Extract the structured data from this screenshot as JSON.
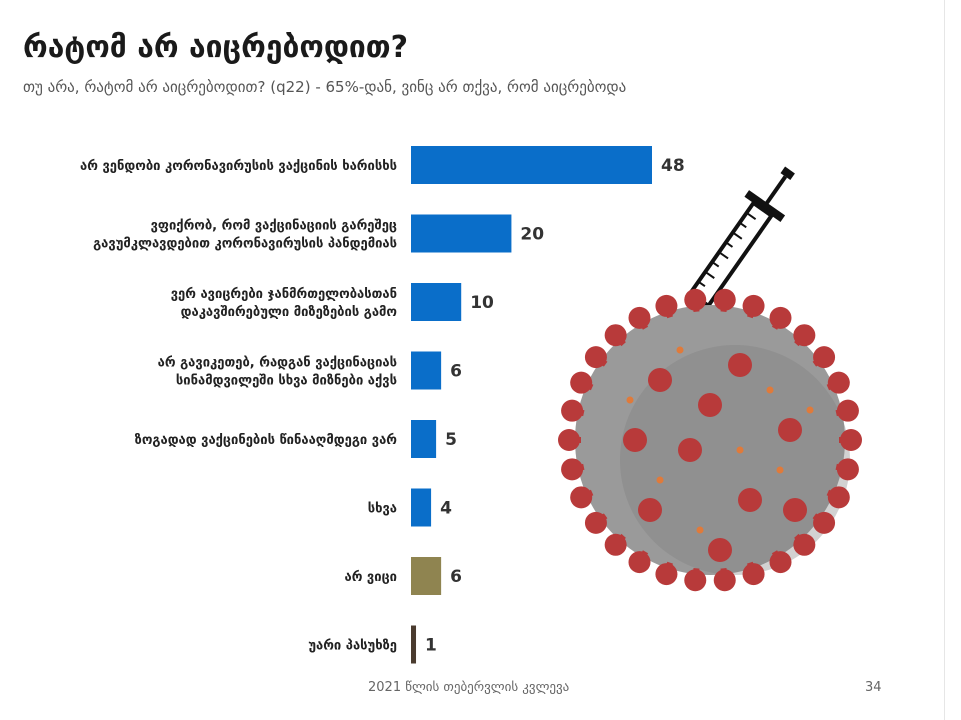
{
  "slide": {
    "title": "რატომ არ აიცრებოდით?",
    "subtitle": "თუ არა, რატომ არ აიცრებოდით? (q22) - 65%-დან, ვინც არ თქვა, რომ აიცრებოდა",
    "footer": "2021 წლის თებერვლის კვლევა",
    "page_number": "34"
  },
  "chart_data": {
    "type": "bar",
    "orientation": "horizontal",
    "categories": [
      [
        "არ ვენდობი კორონავირუსის ვაქცინის ხარისხს"
      ],
      [
        "ვფიქრობ, რომ ვაქცინაციის გარეშეც",
        "გავუმკლავდებით კორონავირუსის პანდემიას"
      ],
      [
        "ვერ ავიცრები ჯანმრთელობასთან",
        "დაკავშირებული მიზეზების გამო"
      ],
      [
        "არ გავიკეთებ, რადგან ვაქცინაციას",
        "სინამდვილეში სხვა მიზნები აქვს"
      ],
      [
        "ზოგადად ვაქცინების წინააღმდეგი ვარ"
      ],
      [
        "სხვა"
      ],
      [
        "არ ვიცი"
      ],
      [
        "უარი პასუხზე"
      ]
    ],
    "values": [
      48,
      20,
      10,
      6,
      5,
      4,
      6,
      1
    ],
    "colors": [
      "#0a6ec9",
      "#0a6ec9",
      "#0a6ec9",
      "#0a6ec9",
      "#0a6ec9",
      "#0a6ec9",
      "#8f8450",
      "#4a3b2f"
    ],
    "xlim": [
      0,
      48
    ],
    "grid": false,
    "legend": "none"
  },
  "illustration": {
    "description_icon": "coronavirus-syringe-illustration",
    "virus_color": "#9a9a9a",
    "spike_color": "#b83a3a",
    "syringe_color": "#111111"
  }
}
